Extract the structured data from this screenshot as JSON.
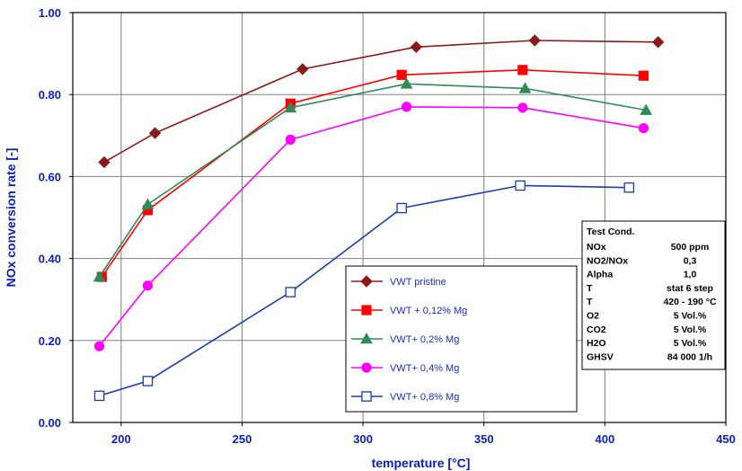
{
  "chart_data": {
    "type": "line",
    "title": "",
    "xlabel": "temperature [°C]",
    "ylabel": "NOx conversion rate [-]",
    "xlim": [
      180,
      450
    ],
    "ylim": [
      0.0,
      1.0
    ],
    "x_ticks": [
      "200",
      "250",
      "300",
      "350",
      "400",
      "450"
    ],
    "x_tick_values": [
      200,
      250,
      300,
      350,
      400,
      450
    ],
    "y_ticks": [
      "0.00",
      "0.20",
      "0.40",
      "0.60",
      "0.80",
      "1.00"
    ],
    "y_tick_values": [
      0.0,
      0.2,
      0.4,
      0.6,
      0.8,
      1.0
    ],
    "grid": true,
    "legend_position": "bottom-center",
    "series": [
      {
        "name": "VWT pristine",
        "color": "#8b1a1a",
        "marker": "diamond",
        "filled": true,
        "x": [
          193,
          214,
          275,
          322,
          371,
          422
        ],
        "y": [
          0.635,
          0.706,
          0.862,
          0.916,
          0.932,
          0.928
        ]
      },
      {
        "name": "VWT + 0,12% Mg",
        "color": "#ff0000",
        "marker": "square",
        "filled": true,
        "x": [
          192,
          211,
          270,
          316,
          366,
          416
        ],
        "y": [
          0.355,
          0.518,
          0.778,
          0.848,
          0.86,
          0.846
        ]
      },
      {
        "name": "VWT+ 0,2% Mg",
        "color": "#2e8b57",
        "marker": "triangle",
        "filled": true,
        "x": [
          191,
          211,
          270,
          318,
          367,
          417
        ],
        "y": [
          0.355,
          0.532,
          0.768,
          0.826,
          0.815,
          0.762
        ]
      },
      {
        "name": "VWT+ 0,4% Mg",
        "color": "#ff00ff",
        "marker": "circle",
        "filled": true,
        "x": [
          191,
          211,
          270,
          318,
          366,
          416
        ],
        "y": [
          0.186,
          0.334,
          0.69,
          0.77,
          0.768,
          0.718
        ]
      },
      {
        "name": "VWT+ 0,8% Mg",
        "color": "#1a3cb4",
        "marker": "square",
        "filled": false,
        "x": [
          191,
          211,
          270,
          316,
          365,
          410
        ],
        "y": [
          0.065,
          0.101,
          0.318,
          0.523,
          0.578,
          0.573
        ]
      }
    ]
  },
  "test_conditions": {
    "title": "Test Cond.",
    "rows": [
      {
        "label": "NOx",
        "value": "500 ppm"
      },
      {
        "label": "NO2/NOx",
        "value": "0,3"
      },
      {
        "label": "Alpha",
        "value": "1,0"
      },
      {
        "label": "T",
        "value": "stat 6 step"
      },
      {
        "label": "T",
        "value": "420 - 190 °C"
      },
      {
        "label": "O2",
        "value": "5 Vol.%"
      },
      {
        "label": "CO2",
        "value": "5 Vol.%"
      },
      {
        "label": "H2O",
        "value": "5 Vol.%"
      },
      {
        "label": "GHSV",
        "value": "84 000 1/h"
      }
    ]
  }
}
